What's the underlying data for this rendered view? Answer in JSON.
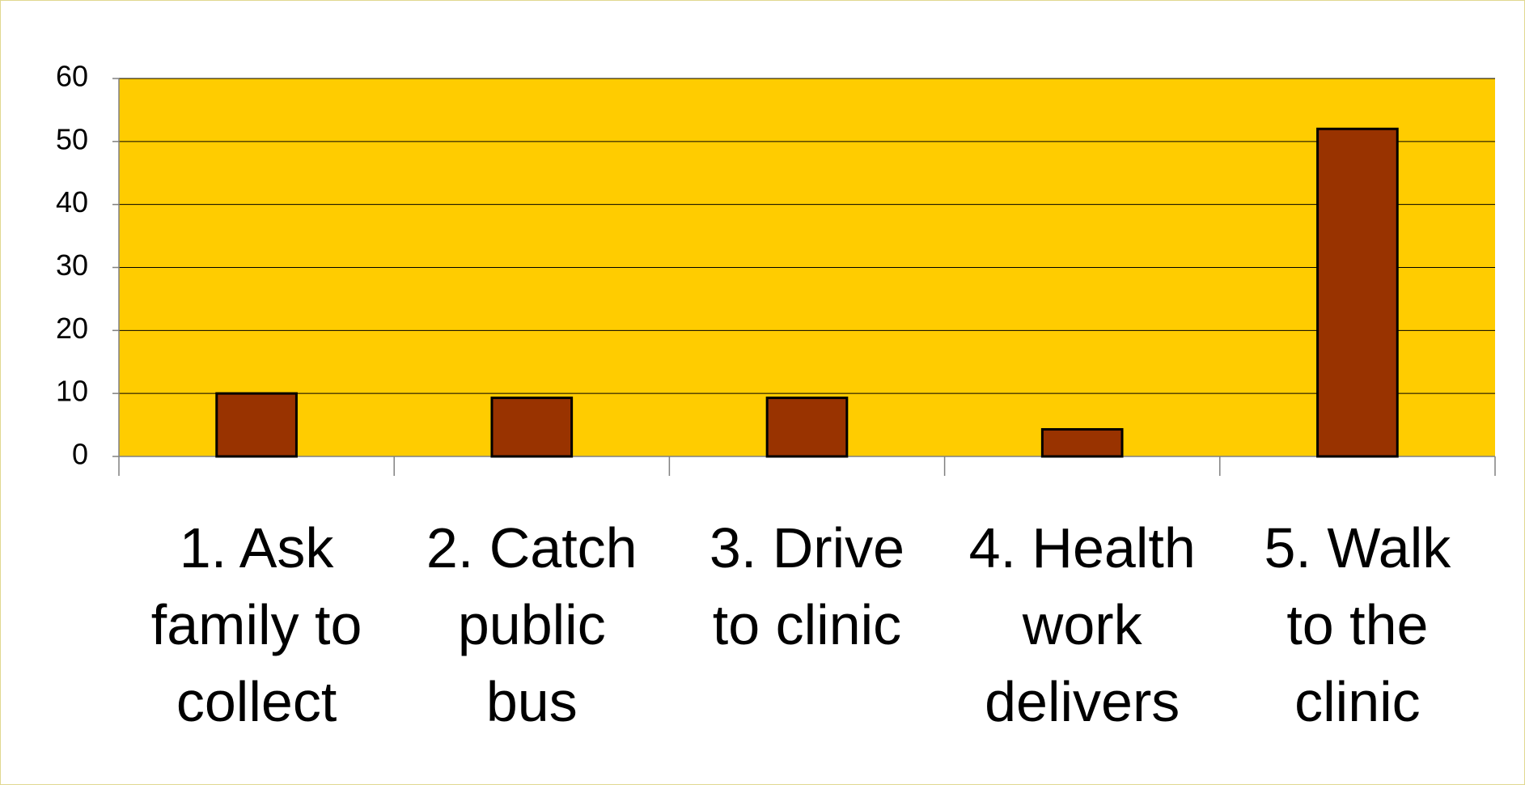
{
  "chart_data": {
    "type": "bar",
    "categories": [
      "1. Ask\nfamily to\ncollect",
      "2. Catch\npublic\nbus",
      "3. Drive\nto clinic",
      "4. Health\nwork\ndelivers",
      "5. Walk\nto the\nclinic"
    ],
    "values": [
      10,
      9.3,
      9.3,
      4.3,
      52
    ],
    "color": "#993300",
    "plot_background": "#ffcc00",
    "ylim": [
      0,
      60
    ],
    "yticks": [
      0,
      10,
      20,
      30,
      40,
      50,
      60
    ],
    "grid": true
  }
}
